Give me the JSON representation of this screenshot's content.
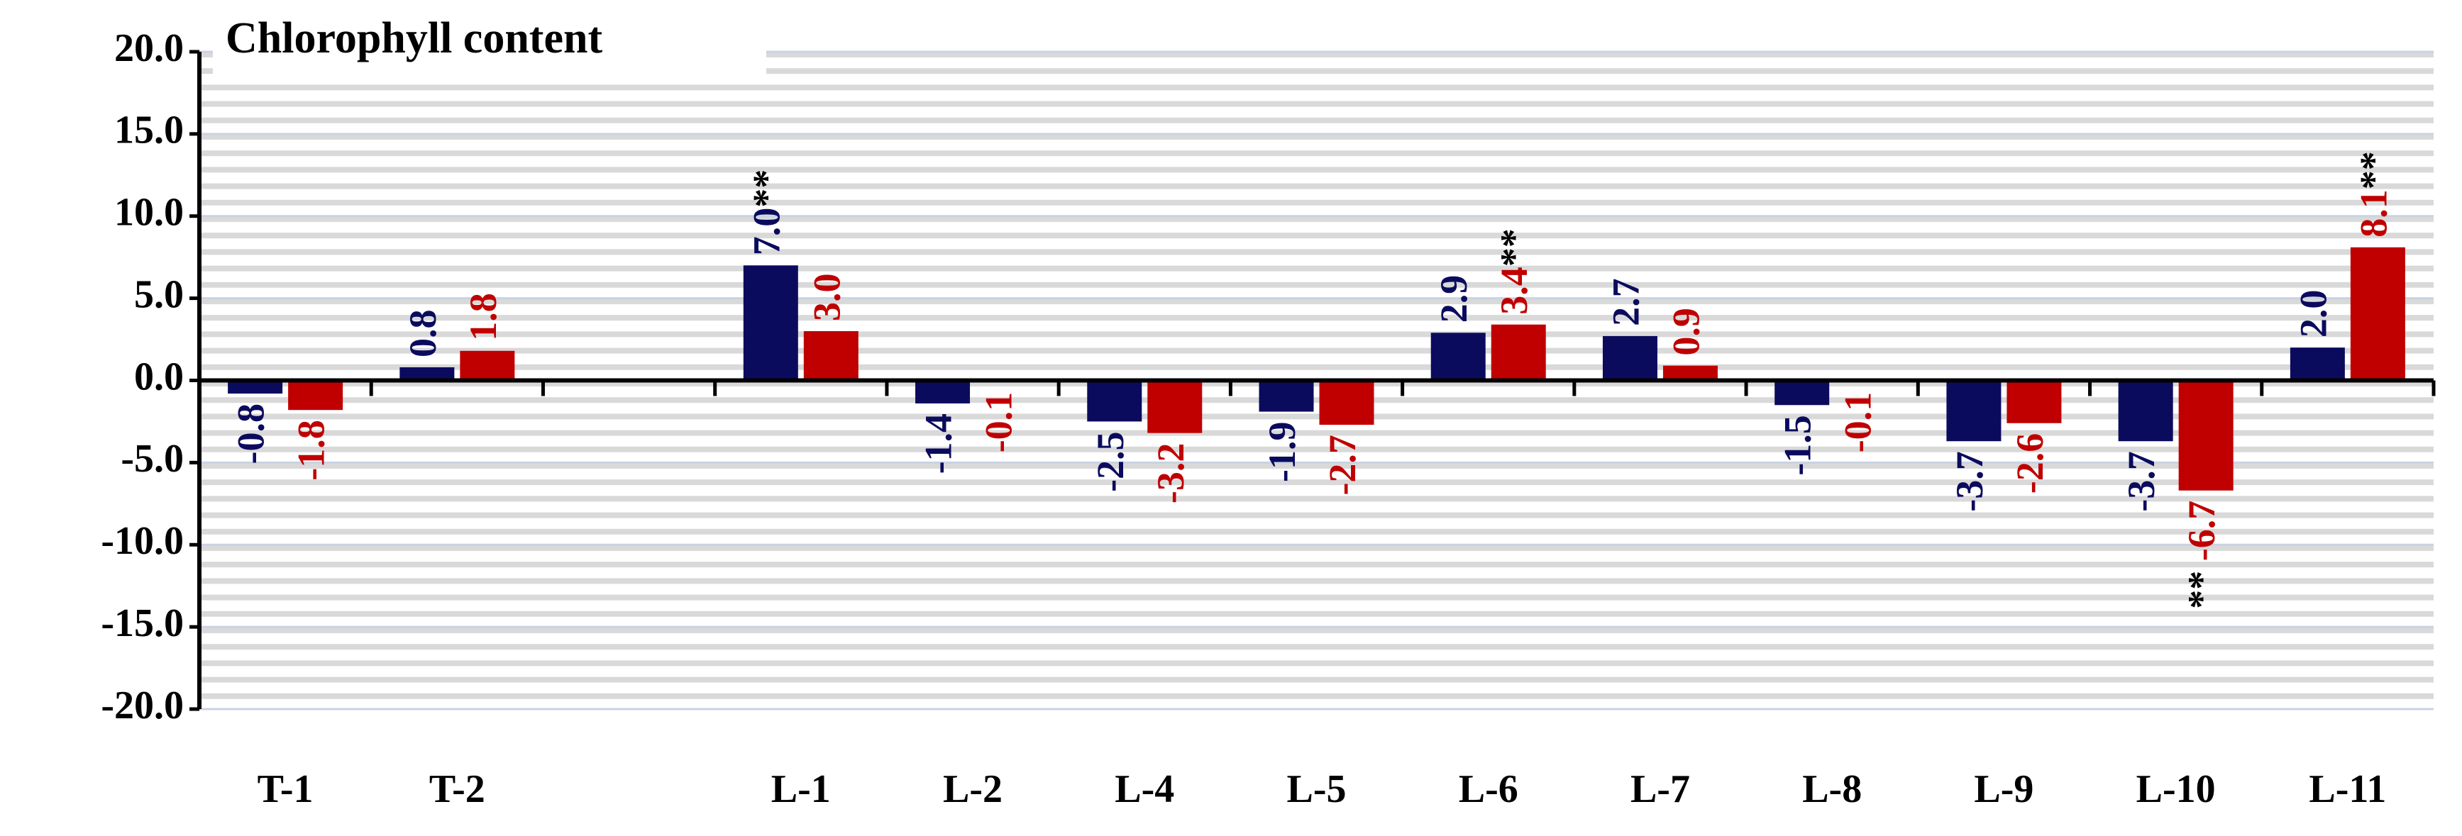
{
  "chart_data": {
    "type": "bar",
    "title": "Chlorophyll content",
    "categories": [
      "T-1",
      "T-2",
      null,
      "L-1",
      "L-2",
      "L-4",
      "L-5",
      "L-6",
      "L-7",
      "L-8",
      "L-9",
      "L-10",
      "L-11"
    ],
    "series": [
      {
        "color": "#0b0b5e",
        "values": [
          -0.8,
          0.8,
          null,
          7.0,
          -1.4,
          -2.5,
          -1.9,
          2.9,
          2.7,
          -1.5,
          -3.7,
          -3.7,
          2.0
        ],
        "value_labels": [
          "-0.8",
          "0.8",
          null,
          "7.0",
          "-1.4",
          "-2.5",
          "-1.9",
          "2.9",
          "2.7",
          "-1.5",
          "-3.7",
          "-3.7",
          "2.0"
        ],
        "markers": [
          null,
          null,
          null,
          "**",
          null,
          null,
          null,
          null,
          null,
          null,
          null,
          null,
          null
        ]
      },
      {
        "color": "#c00000",
        "values": [
          -1.8,
          1.8,
          null,
          3.0,
          -0.1,
          -3.2,
          -2.7,
          3.4,
          0.9,
          -0.1,
          -2.6,
          -6.7,
          8.1
        ],
        "value_labels": [
          "-1.8",
          "1.8",
          null,
          "3.0",
          "-0.1",
          "-3.2",
          "-2.7",
          "3.4",
          "0.9",
          "-0.1",
          "-2.6",
          "-6.7",
          "8.1"
        ],
        "markers": [
          null,
          null,
          null,
          null,
          null,
          null,
          null,
          "**",
          null,
          null,
          null,
          "**",
          "**"
        ]
      }
    ],
    "ylim": [
      -20,
      20
    ],
    "yticks": [
      {
        "value": 20,
        "label": "20.0"
      },
      {
        "value": 15,
        "label": "15.0"
      },
      {
        "value": 10,
        "label": "10.0"
      },
      {
        "value": 5,
        "label": "5.0"
      },
      {
        "value": 0,
        "label": "0.0"
      },
      {
        "value": -5,
        "label": "-5.0"
      },
      {
        "value": -10,
        "label": "-10.0"
      },
      {
        "value": -15,
        "label": "-15.0"
      },
      {
        "value": -20,
        "label": "-20.0"
      }
    ],
    "grid": true
  }
}
